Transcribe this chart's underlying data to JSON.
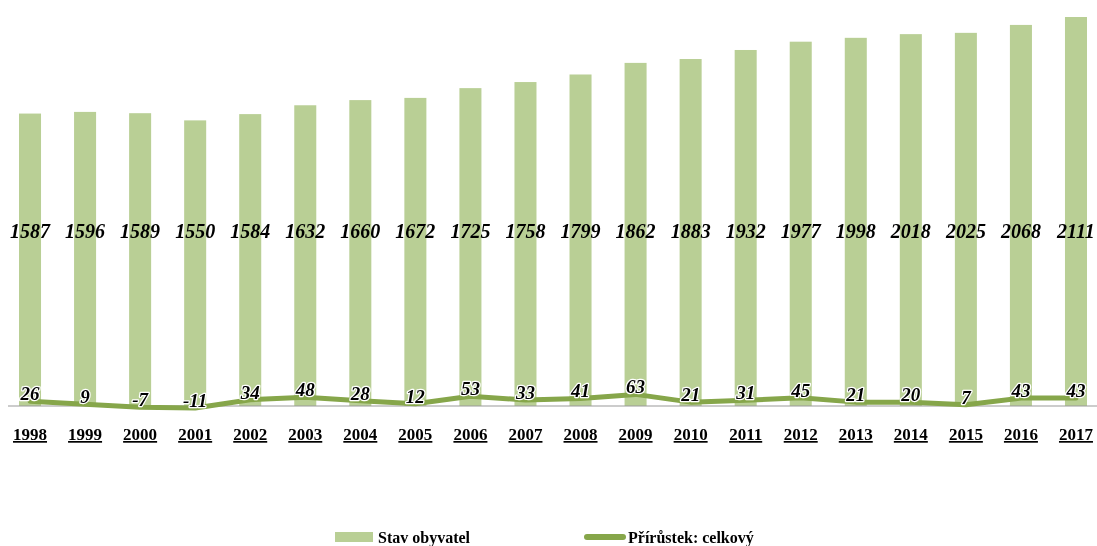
{
  "chart_data": {
    "type": "bar",
    "categories": [
      "1998",
      "1999",
      "2000",
      "2001",
      "2002",
      "2003",
      "2004",
      "2005",
      "2006",
      "2007",
      "2008",
      "2009",
      "2010",
      "2011",
      "2012",
      "2013",
      "2014",
      "2015",
      "2016",
      "2017"
    ],
    "series": [
      {
        "name": "Stav obyvatel",
        "color": "#b9cf95",
        "values": [
          1587,
          1596,
          1589,
          1550,
          1584,
          1632,
          1660,
          1672,
          1725,
          1758,
          1799,
          1862,
          1883,
          1932,
          1977,
          1998,
          2018,
          2025,
          2068,
          2111
        ]
      },
      {
        "name": "Přírůstek: celkový",
        "type": "line",
        "color": "#86a64a",
        "values": [
          26,
          9,
          -7,
          -11,
          34,
          48,
          28,
          12,
          53,
          33,
          41,
          63,
          21,
          31,
          45,
          21,
          20,
          7,
          43,
          43
        ]
      }
    ],
    "data_labels": true,
    "legend": "bottom",
    "tick_labels": "x"
  }
}
